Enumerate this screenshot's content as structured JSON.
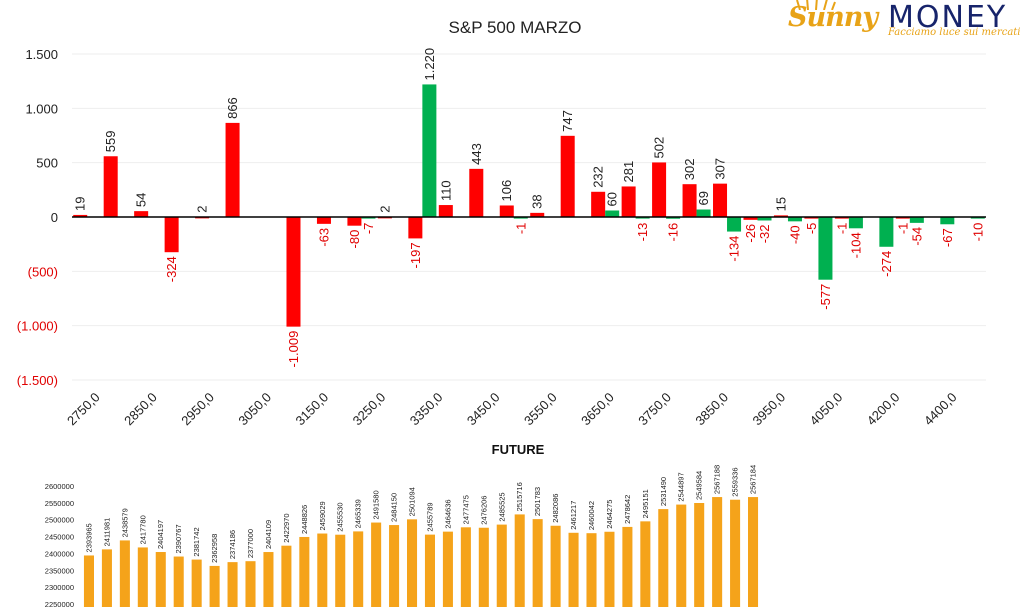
{
  "logo": {
    "brand_left": "Sunny",
    "brand_right": "MONEY",
    "tagline": "Facciamo luce sui mercati"
  },
  "colors": {
    "positive": "#00b050",
    "negative": "#ff0000",
    "negative_label": "#e00000",
    "future_bar": "#f5a31a",
    "axis": "#000000",
    "grid": "#eeeeee"
  },
  "chart_data": [
    {
      "type": "bar",
      "title": "S&P 500 MARZO",
      "xlabel": "",
      "ylabel": "",
      "ylim": [
        -1500,
        1500
      ],
      "y_ticks": [
        1500,
        1000,
        500,
        0,
        -500,
        -1000,
        -1500
      ],
      "y_tick_labels": [
        "1.500",
        "1.000",
        "500",
        "0",
        "(500)",
        "(1.000)",
        "(1.500)"
      ],
      "x_tick_labels": [
        "2750,0",
        "2850,0",
        "2950,0",
        "3050,0",
        "3150,0",
        "3250,0",
        "3350,0",
        "3450,0",
        "3550,0",
        "3650,0",
        "3750,0",
        "3850,0",
        "3950,0",
        "4050,0",
        "4200,0",
        "4400,0"
      ],
      "grid": true,
      "legend": "none",
      "data": [
        {
          "x": "2750",
          "red": 19,
          "green": null
        },
        {
          "x": "2800",
          "red": 559,
          "green": null
        },
        {
          "x": "2850",
          "red": 54,
          "green": null
        },
        {
          "x": "2900",
          "red": -324,
          "green": null
        },
        {
          "x": "2950",
          "red": 2,
          "green": null
        },
        {
          "x": "3000",
          "red": 866,
          "green": null
        },
        {
          "x": "3050",
          "red": null,
          "green": null
        },
        {
          "x": "3100",
          "red": -1009,
          "green": null
        },
        {
          "x": "3125",
          "red": -63,
          "green": null
        },
        {
          "x": "3150",
          "red": -80,
          "green": -7
        },
        {
          "x": "3200",
          "red": 2,
          "green": null
        },
        {
          "x": "3250",
          "red": -197,
          "green": 1220
        },
        {
          "x": "3300",
          "red": 110,
          "green": null
        },
        {
          "x": "3350",
          "red": 443,
          "green": null
        },
        {
          "x": "3400",
          "red": 106,
          "green": -1
        },
        {
          "x": "3450",
          "red": 38,
          "green": null
        },
        {
          "x": "3500",
          "red": 747,
          "green": null
        },
        {
          "x": "3550",
          "red": 232,
          "green": 60
        },
        {
          "x": "3575",
          "red": 281,
          "green": -13
        },
        {
          "x": "3600",
          "red": 502,
          "green": -16
        },
        {
          "x": "3625",
          "red": 302,
          "green": 69
        },
        {
          "x": "3650",
          "red": 307,
          "green": -134
        },
        {
          "x": "3675",
          "red": -26,
          "green": -32
        },
        {
          "x": "3700",
          "red": 15,
          "green": -40
        },
        {
          "x": "3725",
          "red": -5,
          "green": -577
        },
        {
          "x": "3750",
          "red": -1,
          "green": -104
        },
        {
          "x": "3800",
          "red": null,
          "green": -274
        },
        {
          "x": "3850",
          "red": -1,
          "green": -54
        },
        {
          "x": "3900",
          "red": null,
          "green": -67
        },
        {
          "x": "4400",
          "red": null,
          "green": -10
        }
      ]
    },
    {
      "type": "bar",
      "title": "FUTURE",
      "xlabel": "",
      "ylabel": "",
      "ylim": [
        2250000,
        2600000
      ],
      "y_ticks": [
        2600000,
        2550000,
        2500000,
        2450000,
        2400000,
        2350000,
        2300000,
        2250000
      ],
      "y_tick_labels": [
        "2600000",
        "2550000",
        "2500000",
        "2450000",
        "2400000",
        "2350000",
        "2300000",
        "2250000"
      ],
      "grid": false,
      "legend": "none",
      "values": [
        2393965,
        2411981,
        2438579,
        2417780,
        2404197,
        2390767,
        2381742,
        2362958,
        2374186,
        2377000,
        2404109,
        2422970,
        2448826,
        2459029,
        2455530,
        2465339,
        2491580,
        2484150,
        2501094,
        2455789,
        2464636,
        2477475,
        2476206,
        2485525,
        2515716,
        2501783,
        2482086,
        2461217,
        2460042,
        2464275,
        2478642,
        2495151,
        2531490,
        2544897,
        2549584,
        2567188,
        2559336,
        2567184
      ]
    }
  ]
}
